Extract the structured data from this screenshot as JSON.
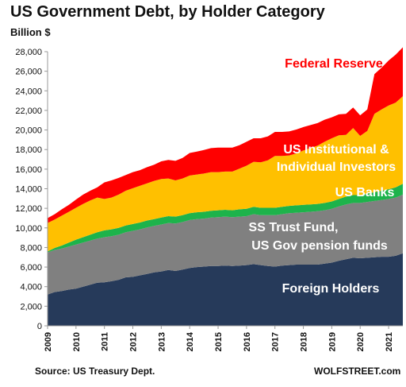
{
  "chart_data": {
    "type": "area",
    "stacked": true,
    "title": "US Government Debt, by Holder Category",
    "ylabel": "Billion $",
    "source": "Source: US Treasury Dept.",
    "brand": "WOLFSTREET.com",
    "ylim": [
      0,
      28000
    ],
    "yticks": [
      "0",
      "2,000",
      "4,000",
      "6,000",
      "8,000",
      "10,000",
      "12,000",
      "14,000",
      "16,000",
      "18,000",
      "20,000",
      "22,000",
      "24,000",
      "26,000",
      "28,000"
    ],
    "xticks": [
      "2009",
      "2010",
      "2011",
      "2012",
      "2013",
      "2014",
      "2015",
      "2016",
      "2017",
      "2018",
      "2019",
      "2020",
      "2021"
    ],
    "x": [
      2009.0,
      2009.25,
      2009.5,
      2009.75,
      2010.0,
      2010.25,
      2010.5,
      2010.75,
      2011.0,
      2011.25,
      2011.5,
      2011.75,
      2012.0,
      2012.25,
      2012.5,
      2012.75,
      2013.0,
      2013.25,
      2013.5,
      2013.75,
      2014.0,
      2014.25,
      2014.5,
      2014.75,
      2015.0,
      2015.25,
      2015.5,
      2015.75,
      2016.0,
      2016.25,
      2016.5,
      2016.75,
      2017.0,
      2017.25,
      2017.5,
      2017.75,
      2018.0,
      2018.25,
      2018.5,
      2018.75,
      2019.0,
      2019.25,
      2019.5,
      2019.75,
      2020.0,
      2020.25,
      2020.5,
      2020.75,
      2021.0,
      2021.25,
      2021.5
    ],
    "series": [
      {
        "name": "Foreign Holders",
        "color": "#263a5a",
        "label_color": "#ffffff",
        "values": [
          3200,
          3450,
          3550,
          3700,
          3800,
          4000,
          4200,
          4400,
          4450,
          4550,
          4700,
          4950,
          5000,
          5150,
          5300,
          5450,
          5550,
          5700,
          5600,
          5750,
          5900,
          6000,
          6050,
          6100,
          6100,
          6150,
          6100,
          6150,
          6200,
          6300,
          6200,
          6100,
          6050,
          6150,
          6200,
          6250,
          6250,
          6250,
          6250,
          6350,
          6450,
          6650,
          6800,
          6950,
          6900,
          6950,
          7000,
          7050,
          7050,
          7150,
          7400
        ]
      },
      {
        "name": "SS Trust Fund, US Gov pension funds",
        "color": "#808080",
        "label_color": "#ffffff",
        "values": [
          4300,
          4300,
          4350,
          4400,
          4500,
          4500,
          4500,
          4500,
          4600,
          4600,
          4600,
          4600,
          4700,
          4700,
          4750,
          4750,
          4800,
          4800,
          4850,
          4850,
          4900,
          4900,
          4900,
          4950,
          5000,
          5000,
          5000,
          5000,
          5000,
          5100,
          5100,
          5200,
          5250,
          5250,
          5300,
          5300,
          5350,
          5400,
          5450,
          5450,
          5500,
          5550,
          5600,
          5600,
          5650,
          5700,
          5750,
          5800,
          5900,
          5950,
          6000
        ]
      },
      {
        "name": "US Banks",
        "color": "#1db34b",
        "label_color": "#ffffff",
        "values": [
          100,
          200,
          300,
          400,
          500,
          550,
          600,
          650,
          700,
          700,
          700,
          700,
          700,
          700,
          700,
          700,
          700,
          700,
          700,
          700,
          700,
          700,
          700,
          700,
          700,
          700,
          700,
          750,
          750,
          750,
          750,
          750,
          750,
          750,
          750,
          750,
          750,
          750,
          750,
          750,
          750,
          750,
          800,
          800,
          800,
          850,
          900,
          950,
          1000,
          1050,
          1100
        ]
      },
      {
        "name": "US Institutional & Individual Investors",
        "color": "#ffc000",
        "label_color": "#ffffff",
        "values": [
          2900,
          2900,
          3050,
          3150,
          3250,
          3400,
          3500,
          3550,
          3200,
          3250,
          3400,
          3550,
          3650,
          3750,
          3800,
          3900,
          3950,
          3850,
          3700,
          3750,
          3850,
          3850,
          3900,
          3950,
          3900,
          3900,
          3950,
          4150,
          4400,
          4600,
          4650,
          4850,
          5300,
          5200,
          5150,
          5300,
          5550,
          5750,
          5950,
          6250,
          6450,
          6500,
          6300,
          6850,
          6050,
          6400,
          8000,
          8300,
          8550,
          8650,
          8950
        ]
      },
      {
        "name": "Federal Reserve",
        "color": "#ff0000",
        "label_color": "#ff0000",
        "values": [
          500,
          550,
          650,
          700,
          850,
          950,
          1000,
          1050,
          1700,
          1750,
          1700,
          1600,
          1650,
          1600,
          1650,
          1650,
          1800,
          1900,
          2000,
          2100,
          2300,
          2350,
          2400,
          2450,
          2500,
          2450,
          2450,
          2400,
          2450,
          2400,
          2450,
          2450,
          2450,
          2450,
          2450,
          2450,
          2400,
          2350,
          2300,
          2250,
          2150,
          2150,
          2150,
          2100,
          2100,
          2200,
          4050,
          4250,
          4600,
          4900,
          5000
        ]
      }
    ]
  }
}
